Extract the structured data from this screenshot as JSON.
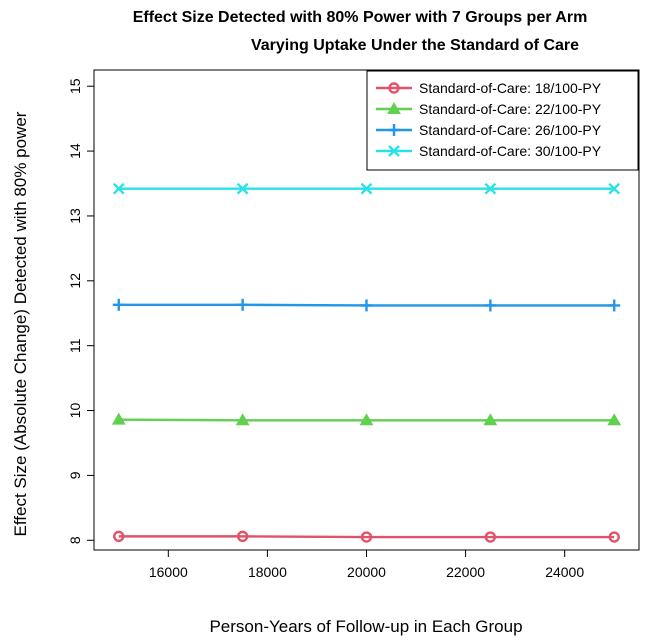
{
  "chart_data": {
    "type": "line",
    "title_line1": "Effect Size Detected with 80% Power with 7 Groups per Arm",
    "title_line2": "Varying Uptake Under the Standard of Care",
    "xlabel": "Person-Years of Follow-up in Each Group",
    "ylabel": "Effect Size (Absolute Change) Detected with 80% power",
    "x": [
      15000,
      17500,
      20000,
      22500,
      25000
    ],
    "xlim": [
      14500,
      25500
    ],
    "ylim": [
      7.85,
      15.25
    ],
    "xticks": [
      16000,
      18000,
      20000,
      22000,
      24000
    ],
    "xtick_labels": [
      "16000",
      "18000",
      "20000",
      "22000",
      "24000"
    ],
    "yticks": [
      8,
      9,
      10,
      11,
      12,
      13,
      14,
      15
    ],
    "ytick_labels": [
      "8",
      "9",
      "10",
      "11",
      "12",
      "13",
      "14",
      "15"
    ],
    "grid": false,
    "legend_position": "top-right",
    "series": [
      {
        "name": "Standard-of-Care: 18/100-PY",
        "color": "#DF536B",
        "marker": "circle",
        "values": [
          8.06,
          8.06,
          8.05,
          8.05,
          8.05
        ]
      },
      {
        "name": "Standard-of-Care: 22/100-PY",
        "color": "#61D04F",
        "marker": "triangle",
        "values": [
          9.86,
          9.85,
          9.85,
          9.85,
          9.85
        ]
      },
      {
        "name": "Standard-of-Care: 26/100-PY",
        "color": "#2297E6",
        "marker": "plus",
        "values": [
          11.63,
          11.63,
          11.62,
          11.62,
          11.62
        ]
      },
      {
        "name": "Standard-of-Care: 30/100-PY",
        "color": "#28E2E5",
        "marker": "cross",
        "values": [
          13.42,
          13.42,
          13.42,
          13.42,
          13.42
        ]
      }
    ]
  }
}
